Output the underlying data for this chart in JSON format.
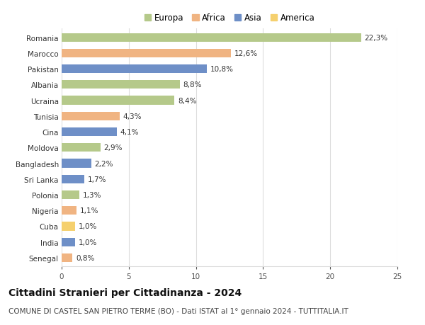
{
  "categories": [
    "Romania",
    "Marocco",
    "Pakistan",
    "Albania",
    "Ucraina",
    "Tunisia",
    "Cina",
    "Moldova",
    "Bangladesh",
    "Sri Lanka",
    "Polonia",
    "Nigeria",
    "Cuba",
    "India",
    "Senegal"
  ],
  "values": [
    22.3,
    12.6,
    10.8,
    8.8,
    8.4,
    4.3,
    4.1,
    2.9,
    2.2,
    1.7,
    1.3,
    1.1,
    1.0,
    1.0,
    0.8
  ],
  "labels": [
    "22,3%",
    "12,6%",
    "10,8%",
    "8,8%",
    "8,4%",
    "4,3%",
    "4,1%",
    "2,9%",
    "2,2%",
    "1,7%",
    "1,3%",
    "1,1%",
    "1,0%",
    "1,0%",
    "0,8%"
  ],
  "continents": [
    "Europa",
    "Africa",
    "Asia",
    "Europa",
    "Europa",
    "Africa",
    "Asia",
    "Europa",
    "Asia",
    "Asia",
    "Europa",
    "Africa",
    "America",
    "Asia",
    "Africa"
  ],
  "colors": {
    "Europa": "#b5c98a",
    "Africa": "#f0b482",
    "Asia": "#6e8fc7",
    "America": "#f5d06e"
  },
  "legend_labels": [
    "Europa",
    "Africa",
    "Asia",
    "America"
  ],
  "xlim": [
    0,
    25
  ],
  "xticks": [
    0,
    5,
    10,
    15,
    20,
    25
  ],
  "title": "Cittadini Stranieri per Cittadinanza - 2024",
  "subtitle": "COMUNE DI CASTEL SAN PIETRO TERME (BO) - Dati ISTAT al 1° gennaio 2024 - TUTTITALIA.IT",
  "background_color": "#ffffff",
  "grid_color": "#dddddd",
  "bar_height": 0.55,
  "title_fontsize": 10,
  "subtitle_fontsize": 7.5,
  "label_fontsize": 7.5,
  "tick_fontsize": 7.5,
  "legend_fontsize": 8.5
}
